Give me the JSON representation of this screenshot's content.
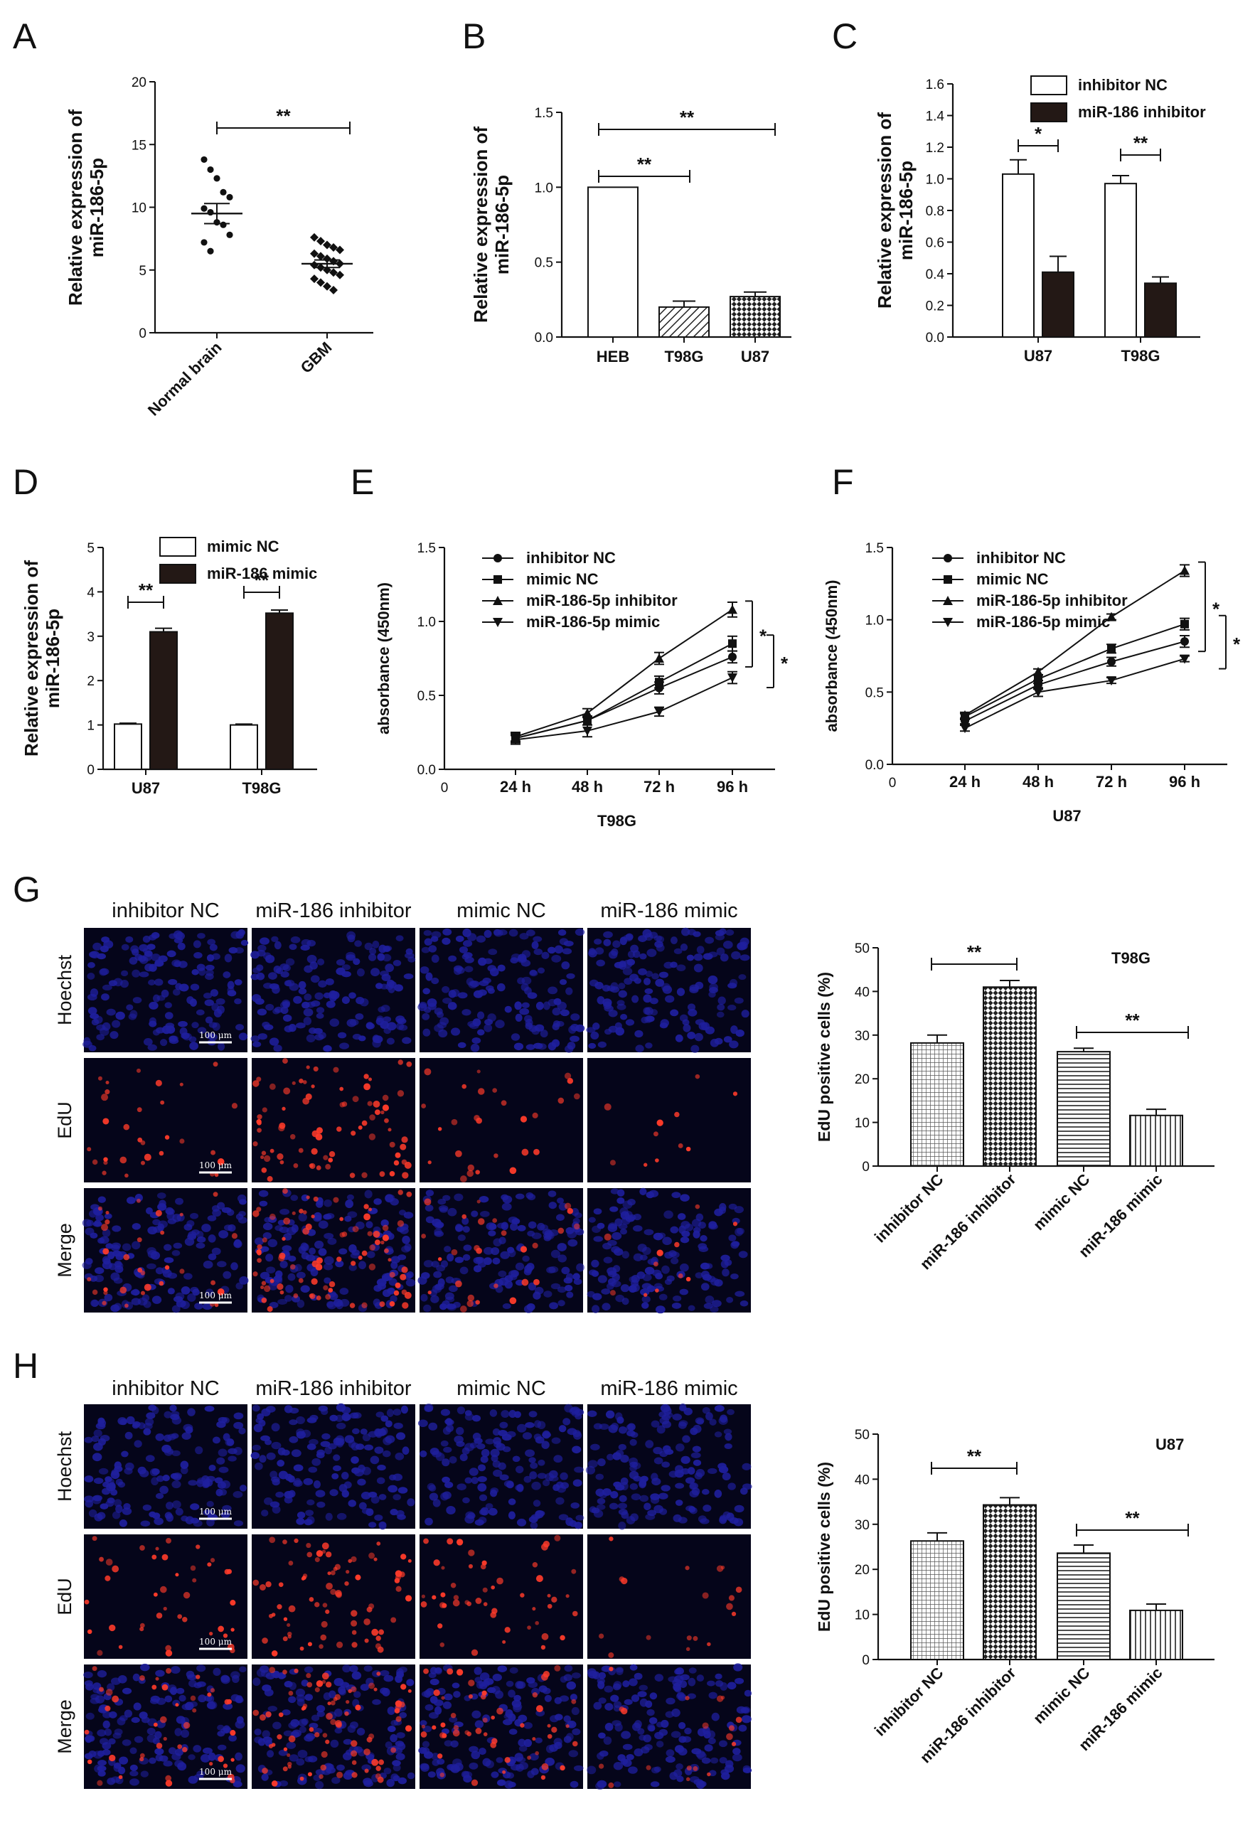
{
  "panels": {
    "A": "A",
    "B": "B",
    "C": "C",
    "D": "D",
    "E": "E",
    "F": "F",
    "G": "G",
    "H": "H"
  },
  "colors": {
    "bar_white": "#ffffff",
    "bar_black": "#231815",
    "micro_blue": "#1f1f9e",
    "micro_red": "#ff3b2a",
    "micro_bg": "#05051a"
  },
  "chart_data": [
    {
      "id": "A",
      "type": "scatter",
      "ylabel": "Relative expression of\nmiR-186-5p",
      "ylim": [
        0,
        20
      ],
      "yticks": [
        "0",
        "5",
        "10",
        "15",
        "20"
      ],
      "categories": [
        "Normal brain",
        "GBM"
      ],
      "mean": [
        9.5,
        5.5
      ],
      "sem": [
        0.8,
        0.3
      ],
      "points": [
        [
          13.8,
          13.0,
          12.3,
          11.2,
          10.8,
          9.9,
          9.6,
          8.8,
          8.6,
          7.8,
          7.2,
          6.5
        ],
        [
          7.6,
          7.3,
          7.0,
          6.8,
          6.6,
          6.3,
          6.1,
          5.9,
          5.7,
          5.5,
          5.4,
          5.2,
          5.0,
          4.8,
          4.6,
          4.3,
          4.0,
          3.7,
          3.4
        ]
      ],
      "significance": [
        {
          "from": 0,
          "to": 1,
          "label": "**"
        }
      ]
    },
    {
      "id": "B",
      "type": "bar",
      "ylabel": "Relative expression of\nmiR-186-5p",
      "ylim": [
        0,
        1.5
      ],
      "yticks": [
        "0.0",
        "0.5",
        "1.0",
        "1.5"
      ],
      "categories": [
        "HEB",
        "T98G",
        "U87"
      ],
      "values": [
        1.0,
        0.2,
        0.27
      ],
      "errors": [
        0,
        0.04,
        0.03
      ],
      "fills": [
        "white",
        "hatch",
        "checker"
      ],
      "significance": [
        {
          "from": 0,
          "to": 1,
          "label": "**"
        },
        {
          "from": 0,
          "to": 2,
          "label": "**"
        }
      ]
    },
    {
      "id": "C",
      "type": "bar",
      "ylabel": "Relative expression of\nmiR-186-5p",
      "ylim": [
        0,
        1.6
      ],
      "yticks": [
        "0.0",
        "0.2",
        "0.4",
        "0.6",
        "0.8",
        "1.0",
        "1.2",
        "1.4",
        "1.6"
      ],
      "categories": [
        "U87",
        "T98G"
      ],
      "series": [
        {
          "name": "inhibitor NC",
          "values": [
            1.03,
            0.97
          ],
          "errors": [
            0.09,
            0.05
          ]
        },
        {
          "name": "miR-186 inhibitor",
          "values": [
            0.41,
            0.34
          ],
          "errors": [
            0.1,
            0.04
          ]
        }
      ],
      "significance": [
        "*",
        "**"
      ]
    },
    {
      "id": "D",
      "type": "bar",
      "ylabel": "Relative expression of\nmiR-186-5p",
      "ylim": [
        0,
        5
      ],
      "yticks": [
        "0",
        "1",
        "2",
        "3",
        "4",
        "5"
      ],
      "categories": [
        "U87",
        "T98G"
      ],
      "series": [
        {
          "name": "mimic NC",
          "values": [
            1.02,
            1.0
          ],
          "errors": [
            0.02,
            0.02
          ]
        },
        {
          "name": "miR-186 mimic",
          "values": [
            3.1,
            3.52
          ],
          "errors": [
            0.08,
            0.07
          ]
        }
      ],
      "significance": [
        "**",
        "**"
      ]
    },
    {
      "id": "E",
      "type": "line",
      "xlabel": "T98G",
      "ylabel": "absorbance (450nm)",
      "ylim": [
        0,
        1.5
      ],
      "yticks": [
        "0.0",
        "0.5",
        "1.0",
        "1.5"
      ],
      "x0label": "0",
      "x": [
        "24 h",
        "48 h",
        "72 h",
        "96 h"
      ],
      "series": [
        {
          "name": "inhibitor NC",
          "marker": "circle",
          "values": [
            0.21,
            0.33,
            0.55,
            0.76
          ],
          "errors": [
            0.03,
            0.03,
            0.04,
            0.04
          ]
        },
        {
          "name": "mimic NC",
          "marker": "square",
          "values": [
            0.21,
            0.33,
            0.59,
            0.85
          ],
          "errors": [
            0.03,
            0.03,
            0.04,
            0.05
          ]
        },
        {
          "name": "miR-186-5p inhibitor",
          "marker": "triangle-up",
          "values": [
            0.22,
            0.38,
            0.75,
            1.08
          ],
          "errors": [
            0.03,
            0.03,
            0.04,
            0.05
          ]
        },
        {
          "name": "miR-186-5p mimic",
          "marker": "triangle-down",
          "values": [
            0.2,
            0.26,
            0.39,
            0.62
          ],
          "errors": [
            0.03,
            0.04,
            0.03,
            0.04
          ]
        }
      ],
      "significance": [
        "*",
        "*"
      ]
    },
    {
      "id": "F",
      "type": "line",
      "xlabel": "U87",
      "ylabel": "absorbance (450nm)",
      "ylim": [
        0,
        1.5
      ],
      "yticks": [
        "0.0",
        "0.5",
        "1.0",
        "1.5"
      ],
      "x0label": "0",
      "x": [
        "24 h",
        "48 h",
        "72 h",
        "96 h"
      ],
      "series": [
        {
          "name": "inhibitor NC",
          "marker": "circle",
          "values": [
            0.3,
            0.55,
            0.71,
            0.85
          ],
          "errors": [
            0.02,
            0.03,
            0.03,
            0.04
          ]
        },
        {
          "name": "mimic NC",
          "marker": "square",
          "values": [
            0.33,
            0.59,
            0.8,
            0.97
          ],
          "errors": [
            0.02,
            0.03,
            0.03,
            0.04
          ]
        },
        {
          "name": "miR-186-5p inhibitor",
          "marker": "triangle-up",
          "values": [
            0.34,
            0.64,
            1.02,
            1.34
          ],
          "errors": [
            0.02,
            0.02,
            0.02,
            0.04
          ]
        },
        {
          "name": "miR-186-5p mimic",
          "marker": "triangle-down",
          "values": [
            0.25,
            0.5,
            0.58,
            0.73
          ],
          "errors": [
            0.02,
            0.03,
            0.02,
            0.02
          ]
        }
      ],
      "significance": [
        "*",
        "*"
      ]
    },
    {
      "id": "G-chart",
      "type": "bar",
      "title": "T98G",
      "ylabel": "EdU positive cells (%)",
      "ylim": [
        0,
        50
      ],
      "yticks": [
        "0",
        "10",
        "20",
        "30",
        "40",
        "50"
      ],
      "categories": [
        "inhibitor NC",
        "miR-186 inhibitor",
        "mimic NC",
        "miR-186 mimic"
      ],
      "values": [
        28.2,
        41.0,
        26.2,
        11.6
      ],
      "errors": [
        1.8,
        1.5,
        0.8,
        1.4
      ],
      "fills": [
        "grid",
        "checker",
        "hlines",
        "vlines"
      ],
      "significance": [
        {
          "from": 0,
          "to": 1,
          "label": "**"
        },
        {
          "from": 2,
          "to": 3,
          "label": "**"
        }
      ]
    },
    {
      "id": "H-chart",
      "type": "bar",
      "title": "U87",
      "ylabel": "EdU positive cells (%)",
      "ylim": [
        0,
        50
      ],
      "yticks": [
        "0",
        "10",
        "20",
        "30",
        "40",
        "50"
      ],
      "categories": [
        "inhibitor NC",
        "miR-186 inhibitor",
        "mimic NC",
        "miR-186 mimic"
      ],
      "values": [
        26.3,
        34.3,
        23.6,
        10.9
      ],
      "errors": [
        1.8,
        1.6,
        1.8,
        1.4
      ],
      "fills": [
        "grid",
        "checker",
        "hlines",
        "vlines"
      ],
      "significance": [
        {
          "from": 0,
          "to": 1,
          "label": "**"
        },
        {
          "from": 2,
          "to": 3,
          "label": "**"
        }
      ]
    }
  ],
  "micrographs": {
    "columns": [
      "inhibitor NC",
      "miR-186 inhibitor",
      "mimic NC",
      "miR-186 mimic"
    ],
    "rows": [
      "Hoechst",
      "EdU",
      "Merge"
    ],
    "scale_bar": "100 μm",
    "edu_density_G": [
      0.35,
      0.9,
      0.3,
      0.12
    ],
    "edu_density_H": [
      0.45,
      0.85,
      0.55,
      0.2
    ]
  }
}
